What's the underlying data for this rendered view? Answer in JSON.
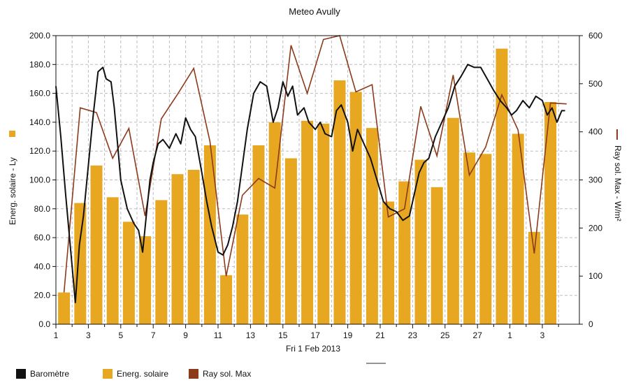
{
  "chart_data": {
    "type": "bar",
    "title": "Meteo  Avully",
    "xlabel": "Fri 1 Feb 2013",
    "ylabel_left": "Energ. solaire - Ly",
    "ylabel_right": "Ray sol. Max - W/m²",
    "ylim_left": [
      0,
      200
    ],
    "ylim_right": [
      0,
      600
    ],
    "yticks_left": [
      "0.0",
      "20.0",
      "40.0",
      "60.0",
      "80.0",
      "100.0",
      "120.0",
      "140.0",
      "160.0",
      "180.0",
      "200.0"
    ],
    "yticks_right": [
      "0",
      "100",
      "200",
      "300",
      "400",
      "500",
      "600"
    ],
    "x_tick_labels": [
      "1",
      "3",
      "5",
      "7",
      "9",
      "11",
      "13",
      "15",
      "17",
      "19",
      "21",
      "23",
      "25",
      "27",
      "1",
      "3"
    ],
    "grid": true,
    "legend_position": "bottom-left",
    "colors": {
      "barometre": "#111111",
      "energie": "#E8A721",
      "ray": "#8B3A1A",
      "grid": "#bdbdbd"
    },
    "series": [
      {
        "name": "Energ. solaire",
        "axis": "left",
        "kind": "bar",
        "days": [
          "1",
          "2",
          "3",
          "4",
          "5",
          "6",
          "7",
          "8",
          "9",
          "10",
          "11",
          "12",
          "13",
          "14",
          "15",
          "16",
          "17",
          "18",
          "19",
          "20",
          "21",
          "22",
          "23",
          "24",
          "25",
          "26",
          "27",
          "28",
          "1",
          "2",
          "3",
          "4"
        ],
        "values": [
          22,
          84,
          110,
          88,
          71,
          61,
          86,
          104,
          107,
          124,
          34,
          76,
          124,
          140,
          115,
          141,
          139,
          169,
          161,
          136,
          85,
          99,
          114,
          95,
          143,
          119,
          118,
          191,
          132,
          64,
          154,
          0
        ]
      },
      {
        "name": "Ray sol. Max",
        "axis": "right",
        "kind": "line",
        "days": [
          "1",
          "2",
          "3",
          "4",
          "5",
          "6",
          "7",
          "8",
          "9",
          "10",
          "11",
          "12",
          "13",
          "14",
          "15",
          "16",
          "17",
          "18",
          "19",
          "20",
          "21",
          "22",
          "23",
          "24",
          "25",
          "26",
          "27",
          "28",
          "1",
          "2",
          "3",
          "4"
        ],
        "values": [
          66,
          450,
          440,
          345,
          407,
          225,
          427,
          478,
          532,
          380,
          100,
          268,
          303,
          283,
          580,
          480,
          592,
          600,
          483,
          498,
          223,
          240,
          453,
          350,
          518,
          310,
          368,
          477,
          404,
          147,
          460,
          458
        ]
      },
      {
        "name": "Baromètre",
        "axis": "left",
        "kind": "line",
        "x_day": [
          1.0,
          1.3,
          1.6,
          2.0,
          2.2,
          2.45,
          2.7,
          3.0,
          3.3,
          3.6,
          3.9,
          4.1,
          4.4,
          4.6,
          4.8,
          5.0,
          5.2,
          5.4,
          5.6,
          5.8,
          6.1,
          6.35,
          6.6,
          6.8,
          7.0,
          7.3,
          7.6,
          8.0,
          8.4,
          8.7,
          9.0,
          9.3,
          9.6,
          10.0,
          10.3,
          10.6,
          11.0,
          11.3,
          11.6,
          11.9,
          12.2,
          12.5,
          12.8,
          13.2,
          13.6,
          14.0,
          14.4,
          14.7,
          15.0,
          15.3,
          15.6,
          15.9,
          16.3,
          16.6,
          17.0,
          17.3,
          17.6,
          18.0,
          18.3,
          18.6,
          19.0,
          19.3,
          19.6,
          20.0,
          20.4,
          20.8,
          21.2,
          21.6,
          22.0,
          22.4,
          22.8,
          23.1,
          23.4,
          23.7,
          24.0,
          24.4,
          24.8,
          25.2,
          25.6,
          26.0,
          26.4,
          26.8,
          27.2,
          27.6,
          28.0,
          28.4,
          28.8,
          29.1,
          29.4,
          29.8,
          30.2,
          30.6,
          31.0,
          31.3,
          31.6,
          31.9,
          32.2,
          32.4
        ],
        "values": [
          165,
          130,
          90,
          40,
          15,
          55,
          75,
          110,
          145,
          175,
          178,
          170,
          168,
          150,
          125,
          100,
          90,
          80,
          75,
          70,
          65,
          50,
          78,
          100,
          112,
          125,
          128,
          122,
          132,
          125,
          143,
          135,
          130,
          105,
          85,
          68,
          50,
          48,
          55,
          68,
          85,
          110,
          135,
          160,
          168,
          165,
          140,
          150,
          168,
          158,
          165,
          145,
          150,
          140,
          135,
          140,
          132,
          130,
          148,
          152,
          140,
          120,
          135,
          125,
          115,
          100,
          85,
          80,
          78,
          72,
          75,
          90,
          105,
          112,
          115,
          130,
          140,
          150,
          165,
          172,
          180,
          178,
          178,
          170,
          162,
          155,
          150,
          145,
          148,
          155,
          150,
          158,
          155,
          145,
          150,
          140,
          148,
          148
        ]
      }
    ]
  }
}
